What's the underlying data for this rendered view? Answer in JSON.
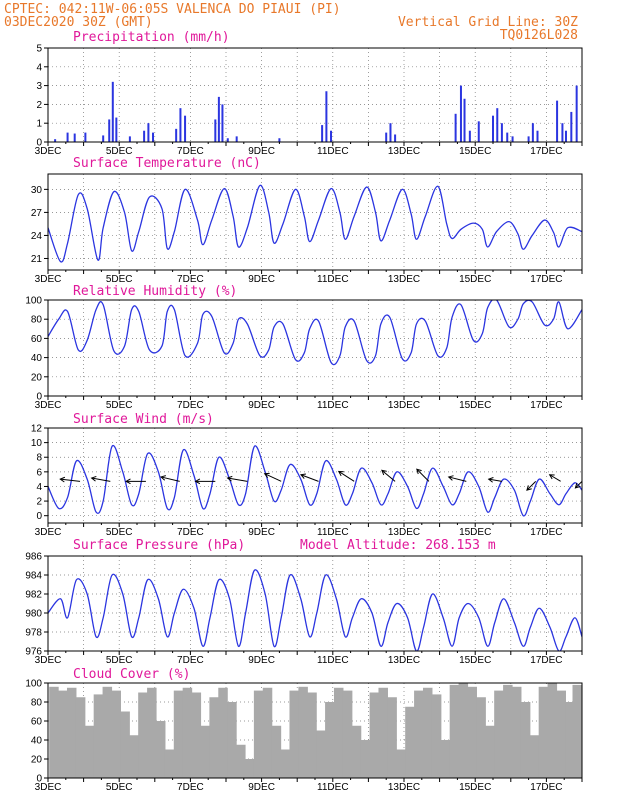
{
  "header": {
    "line1": "CPTEC:   042:11W-06:05S  VALENCA DO PIAUI (PI)",
    "line2": "03DEC2020 30Z (GMT)",
    "grid_note": "Vertical Grid Line: 30Z",
    "code": "TQ0126L028",
    "altitude_label": "Model Altitude: 268.153 m"
  },
  "colors": {
    "header": "#e8782a",
    "panel_title": "#e0189a",
    "series": "#2b35e0",
    "cloud": "#a9a9a9",
    "wind_barb": "#000000"
  },
  "x_tick_labels": [
    "3DEC",
    "5DEC",
    "7DEC",
    "9DEC",
    "11DEC",
    "13DEC",
    "15DEC",
    "17DEC"
  ],
  "chart_data": [
    {
      "type": "bar",
      "title": "Precipitation (mm/h)",
      "ylim": [
        0,
        5
      ],
      "yticks": [
        0,
        1,
        2,
        3,
        4,
        5
      ],
      "grid": true,
      "x": [
        3.2,
        3.55,
        3.75,
        4.05,
        4.55,
        4.72,
        4.82,
        4.92,
        5.3,
        5.7,
        5.82,
        5.95,
        6.6,
        6.72,
        6.85,
        7.7,
        7.8,
        7.9,
        8.05,
        8.3,
        9.5,
        10.7,
        10.82,
        10.95,
        12.5,
        12.62,
        12.75,
        14.45,
        14.6,
        14.7,
        14.85,
        15.1,
        15.5,
        15.62,
        15.75,
        15.9,
        16.05,
        16.5,
        16.62,
        16.75,
        17.3,
        17.45,
        17.55,
        17.7,
        17.85
      ],
      "values": [
        0.15,
        0.5,
        0.45,
        0.5,
        0.35,
        1.2,
        3.2,
        1.3,
        0.3,
        0.6,
        1.0,
        0.5,
        0.7,
        1.8,
        1.4,
        1.2,
        2.4,
        2.0,
        0.2,
        0.3,
        0.2,
        0.9,
        2.7,
        0.6,
        0.5,
        1.0,
        0.4,
        1.5,
        3.0,
        2.3,
        0.6,
        1.1,
        1.4,
        1.8,
        1.0,
        0.5,
        0.3,
        0.3,
        1.0,
        0.6,
        2.2,
        1.0,
        0.6,
        1.6,
        3.0
      ]
    },
    {
      "type": "line",
      "title": "Surface Temperature (nC)",
      "ylim": [
        19.5,
        32
      ],
      "yticks": [
        21,
        24,
        27,
        30
      ],
      "grid": true,
      "series": [
        {
          "x": [
            3.0,
            3.35,
            3.55,
            3.85,
            4.1,
            4.4,
            4.55,
            4.85,
            5.15,
            5.35,
            5.55,
            5.85,
            6.2,
            6.35,
            6.55,
            6.85,
            7.2,
            7.35,
            7.6,
            7.95,
            8.2,
            8.35,
            8.6,
            8.95,
            9.2,
            9.35,
            9.6,
            9.95,
            10.2,
            10.35,
            10.6,
            10.95,
            11.2,
            11.35,
            11.6,
            11.95,
            12.2,
            12.35,
            12.6,
            12.95,
            13.2,
            13.35,
            13.6,
            13.95,
            14.2,
            14.35,
            14.6,
            14.95,
            15.2,
            15.35,
            15.6,
            15.95,
            16.2,
            16.35,
            16.6,
            16.95,
            17.2,
            17.35,
            17.6,
            18.0
          ],
          "values": [
            25,
            20.6,
            23,
            29.3,
            27.5,
            20.8,
            25,
            29.7,
            27,
            22,
            24.5,
            29,
            27.5,
            22.3,
            24.5,
            30,
            26,
            22.8,
            26,
            30.1,
            26.5,
            22.5,
            25,
            30.5,
            27,
            23,
            25.5,
            30,
            26.5,
            23.2,
            26,
            30.1,
            27,
            23.5,
            26.5,
            30.3,
            27,
            23.3,
            26,
            30,
            26.8,
            23.5,
            26.5,
            30.4,
            25.5,
            23.6,
            24.8,
            25.6,
            24.8,
            22.5,
            24.5,
            25.8,
            24.2,
            22.2,
            24,
            26,
            24.4,
            22.5,
            25,
            24.5
          ]
        }
      ]
    },
    {
      "type": "line",
      "title": "Relative Humidity (%)",
      "ylim": [
        0,
        100
      ],
      "yticks": [
        0,
        20,
        40,
        60,
        80,
        100
      ],
      "grid": true,
      "series": [
        {
          "x": [
            3.0,
            3.3,
            3.55,
            3.85,
            4.1,
            4.35,
            4.55,
            4.85,
            5.15,
            5.35,
            5.55,
            5.85,
            6.2,
            6.35,
            6.55,
            6.85,
            7.2,
            7.35,
            7.6,
            7.95,
            8.2,
            8.35,
            8.6,
            8.95,
            9.2,
            9.35,
            9.6,
            9.95,
            10.2,
            10.35,
            10.6,
            10.95,
            11.2,
            11.35,
            11.6,
            11.95,
            12.2,
            12.35,
            12.6,
            12.95,
            13.2,
            13.35,
            13.6,
            13.95,
            14.2,
            14.35,
            14.6,
            14.95,
            15.2,
            15.35,
            15.6,
            15.95,
            16.2,
            16.35,
            16.6,
            16.95,
            17.2,
            17.35,
            17.6,
            18.0
          ],
          "values": [
            62,
            80,
            88,
            48,
            58,
            90,
            95,
            47,
            52,
            90,
            88,
            48,
            52,
            88,
            90,
            42,
            55,
            85,
            83,
            45,
            55,
            80,
            75,
            42,
            48,
            72,
            75,
            38,
            45,
            70,
            78,
            35,
            42,
            72,
            78,
            37,
            42,
            75,
            82,
            39,
            45,
            75,
            78,
            42,
            50,
            82,
            95,
            58,
            65,
            92,
            100,
            72,
            80,
            96,
            98,
            74,
            80,
            98,
            70,
            90
          ]
        }
      ]
    },
    {
      "type": "line",
      "title": "Surface Wind (m/s)",
      "ylim": [
        -1,
        12
      ],
      "yticks": [
        0,
        2,
        4,
        6,
        8,
        10,
        12
      ],
      "grid": true,
      "series": [
        {
          "x": [
            3.0,
            3.3,
            3.55,
            3.8,
            4.1,
            4.35,
            4.55,
            4.8,
            5.1,
            5.35,
            5.55,
            5.8,
            6.1,
            6.35,
            6.55,
            6.8,
            7.1,
            7.35,
            7.55,
            7.8,
            8.1,
            8.35,
            8.55,
            8.8,
            9.1,
            9.35,
            9.55,
            9.8,
            10.1,
            10.35,
            10.55,
            10.8,
            11.1,
            11.35,
            11.55,
            11.8,
            12.1,
            12.35,
            12.55,
            12.8,
            13.1,
            13.35,
            13.55,
            13.8,
            14.1,
            14.35,
            14.55,
            14.8,
            15.1,
            15.35,
            15.55,
            15.8,
            16.1,
            16.35,
            16.55,
            16.8,
            17.1,
            17.35,
            17.55,
            17.8,
            18.0
          ],
          "values": [
            4,
            1,
            2.5,
            7.5,
            5,
            0.5,
            2,
            9.5,
            6,
            1.5,
            3,
            8.5,
            6,
            1,
            2.5,
            9,
            5.5,
            1,
            3,
            8,
            5,
            1.5,
            3,
            9.5,
            6,
            2,
            3.5,
            7,
            5,
            1.5,
            3,
            7.5,
            5,
            1.5,
            3,
            6.5,
            4.5,
            1.5,
            3,
            6,
            4,
            1,
            3,
            6.5,
            4,
            1.5,
            3,
            6,
            4,
            0.5,
            2.5,
            5,
            3.5,
            0,
            2,
            5,
            3,
            1.5,
            3,
            4.5,
            3.5
          ]
        }
      ],
      "barbs": [
        {
          "day": 3.9,
          "u": -0.9,
          "v": 0.1
        },
        {
          "day": 4.75,
          "u": -0.85,
          "v": 0.15
        },
        {
          "day": 5.75,
          "u": -0.9,
          "v": 0.0
        },
        {
          "day": 6.7,
          "u": -0.85,
          "v": 0.2
        },
        {
          "day": 7.7,
          "u": -0.9,
          "v": 0.0
        },
        {
          "day": 8.6,
          "u": -0.9,
          "v": 0.15
        },
        {
          "day": 9.55,
          "u": -0.75,
          "v": 0.35
        },
        {
          "day": 10.6,
          "u": -0.8,
          "v": 0.3
        },
        {
          "day": 11.6,
          "u": -0.7,
          "v": 0.45
        },
        {
          "day": 12.75,
          "u": -0.6,
          "v": 0.5
        },
        {
          "day": 13.7,
          "u": -0.55,
          "v": 0.55
        },
        {
          "day": 14.75,
          "u": -0.8,
          "v": 0.2
        },
        {
          "day": 15.75,
          "u": -0.6,
          "v": 0.1
        },
        {
          "day": 16.7,
          "u": -0.4,
          "v": -0.4
        },
        {
          "day": 17.4,
          "u": -0.5,
          "v": 0.3
        },
        {
          "day": 18.0,
          "u": -0.3,
          "v": -0.3
        }
      ]
    },
    {
      "type": "line",
      "title": "Surface Pressure (hPa)",
      "ylim": [
        976,
        986
      ],
      "yticks": [
        976,
        978,
        980,
        982,
        984,
        986
      ],
      "grid": true,
      "series": [
        {
          "x": [
            3.0,
            3.35,
            3.55,
            3.8,
            4.1,
            4.35,
            4.55,
            4.8,
            5.1,
            5.35,
            5.55,
            5.8,
            6.1,
            6.35,
            6.55,
            6.8,
            7.1,
            7.35,
            7.55,
            7.8,
            8.1,
            8.35,
            8.55,
            8.8,
            9.1,
            9.35,
            9.55,
            9.8,
            10.1,
            10.35,
            10.55,
            10.8,
            11.1,
            11.35,
            11.55,
            11.8,
            12.1,
            12.35,
            12.55,
            12.8,
            13.1,
            13.35,
            13.55,
            13.8,
            14.1,
            14.35,
            14.55,
            14.8,
            15.1,
            15.35,
            15.55,
            15.8,
            16.1,
            16.35,
            16.55,
            16.8,
            17.1,
            17.35,
            17.55,
            17.8,
            18.0
          ],
          "values": [
            980,
            981.5,
            979.5,
            983.5,
            982,
            977.5,
            979.5,
            984,
            982,
            977.5,
            979.5,
            983.5,
            981.5,
            977.5,
            980,
            982.5,
            980.5,
            976.5,
            979.5,
            983.5,
            981.5,
            976.5,
            980,
            984.5,
            982,
            976.5,
            979.5,
            984,
            981.5,
            977.5,
            980,
            984,
            981.5,
            977.5,
            979.5,
            981.5,
            980,
            976.5,
            979,
            981,
            979.5,
            976,
            978.5,
            982,
            979.5,
            976.5,
            979.5,
            981,
            979.5,
            976.5,
            979,
            981.5,
            979,
            976.5,
            978.5,
            980.5,
            978.5,
            976,
            977.5,
            979.5,
            977.5
          ]
        }
      ]
    },
    {
      "type": "bar",
      "title": "Cloud Cover (%)",
      "ylim": [
        0,
        100
      ],
      "yticks": [
        0,
        20,
        40,
        60,
        80,
        100
      ],
      "grid": true,
      "x": [
        3.3,
        3.55,
        3.8,
        4.05,
        4.3,
        4.55,
        4.8,
        5.05,
        5.3,
        5.55,
        5.8,
        6.05,
        6.3,
        6.55,
        6.8,
        7.05,
        7.3,
        7.55,
        7.8,
        8.05,
        8.3,
        8.55,
        8.8,
        9.05,
        9.3,
        9.55,
        9.8,
        10.05,
        10.3,
        10.55,
        10.8,
        11.05,
        11.3,
        11.55,
        11.8,
        12.05,
        12.3,
        12.55,
        12.8,
        13.05,
        13.3,
        13.55,
        13.8,
        14.05,
        14.3,
        14.55,
        14.8,
        15.05,
        15.3,
        15.55,
        15.8,
        16.05,
        16.3,
        16.55,
        16.8,
        17.05,
        17.3,
        17.55,
        17.8,
        18.0
      ],
      "values": [
        96,
        92,
        95,
        85,
        55,
        88,
        96,
        92,
        70,
        45,
        90,
        95,
        60,
        30,
        92,
        95,
        90,
        55,
        85,
        95,
        80,
        35,
        20,
        92,
        95,
        55,
        30,
        92,
        96,
        90,
        50,
        80,
        95,
        92,
        55,
        40,
        90,
        95,
        85,
        30,
        75,
        92,
        95,
        88,
        40,
        98,
        100,
        96,
        85,
        55,
        92,
        98,
        96,
        80,
        45,
        96,
        100,
        92,
        80,
        98
      ]
    }
  ]
}
